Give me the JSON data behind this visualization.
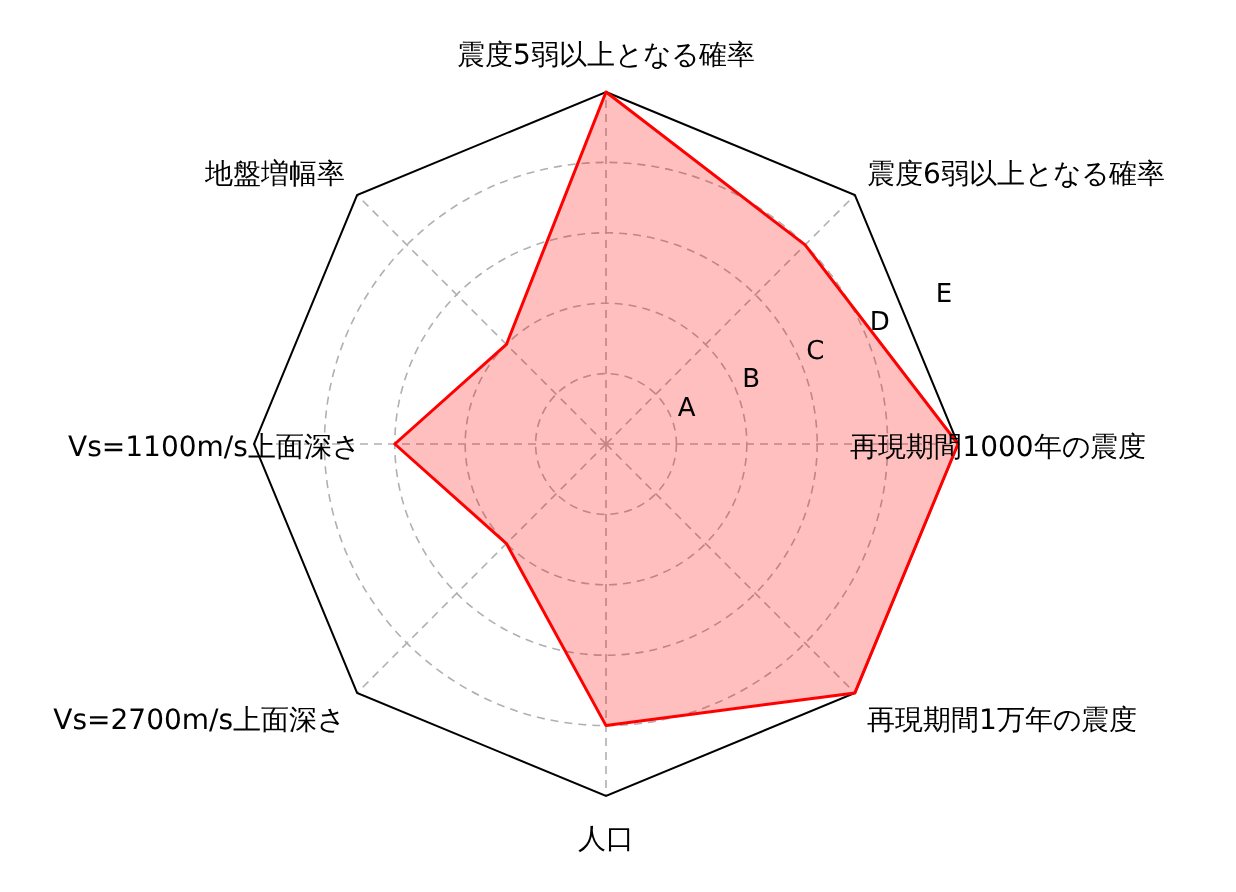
{
  "chart_data": {
    "type": "radar",
    "categories": [
      "震度5弱以上となる確率",
      "震度6弱以上となる確率",
      "再現期間1000年の震度",
      "再現期間1万年の震度",
      "人口",
      "Vs=2700m/s上面深さ",
      "Vs=1100m/s上面深さ",
      "地盤増幅率"
    ],
    "series": [
      {
        "color": "#ff0000",
        "values": [
          5,
          4,
          5,
          5,
          4,
          2,
          3,
          2
        ]
      }
    ],
    "ylim": [
      0,
      5
    ],
    "yticks": [
      {
        "value": 1,
        "label": "A"
      },
      {
        "value": 2,
        "label": "B"
      },
      {
        "value": 3,
        "label": "C"
      },
      {
        "value": 4,
        "label": "D"
      },
      {
        "value": 5,
        "label": "E"
      }
    ],
    "grid": true
  }
}
